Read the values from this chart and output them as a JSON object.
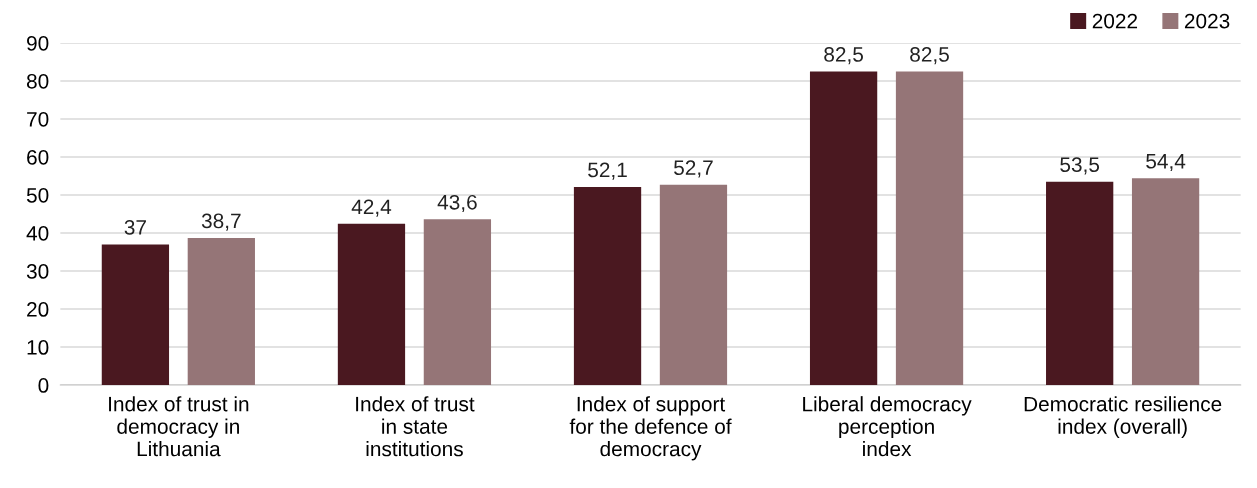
{
  "chart_data": {
    "type": "bar",
    "categories": [
      "Index of trust in\ndemocracy in\nLithuania",
      "Index of trust\nin state\ninstitutions",
      "Index of support\nfor the defence of\ndemocracy",
      "Liberal democracy\nperception\nindex",
      "Democratic resilience\nindex (overall)"
    ],
    "series": [
      {
        "name": "2022",
        "color": "#4a1820",
        "values": [
          37,
          42.4,
          52.1,
          82.5,
          53.5
        ],
        "value_labels": [
          "37",
          "42,4",
          "52,1",
          "82,5",
          "53,5"
        ]
      },
      {
        "name": "2023",
        "color": "#957577",
        "values": [
          38.7,
          43.6,
          52.7,
          82.5,
          54.4
        ],
        "value_labels": [
          "38,7",
          "43,6",
          "52,7",
          "82,5",
          "54,4"
        ]
      }
    ],
    "ylim": [
      0,
      90
    ],
    "yticks": [
      0,
      10,
      20,
      30,
      40,
      50,
      60,
      70,
      80,
      90
    ],
    "grid": "y",
    "legend": "top right"
  }
}
